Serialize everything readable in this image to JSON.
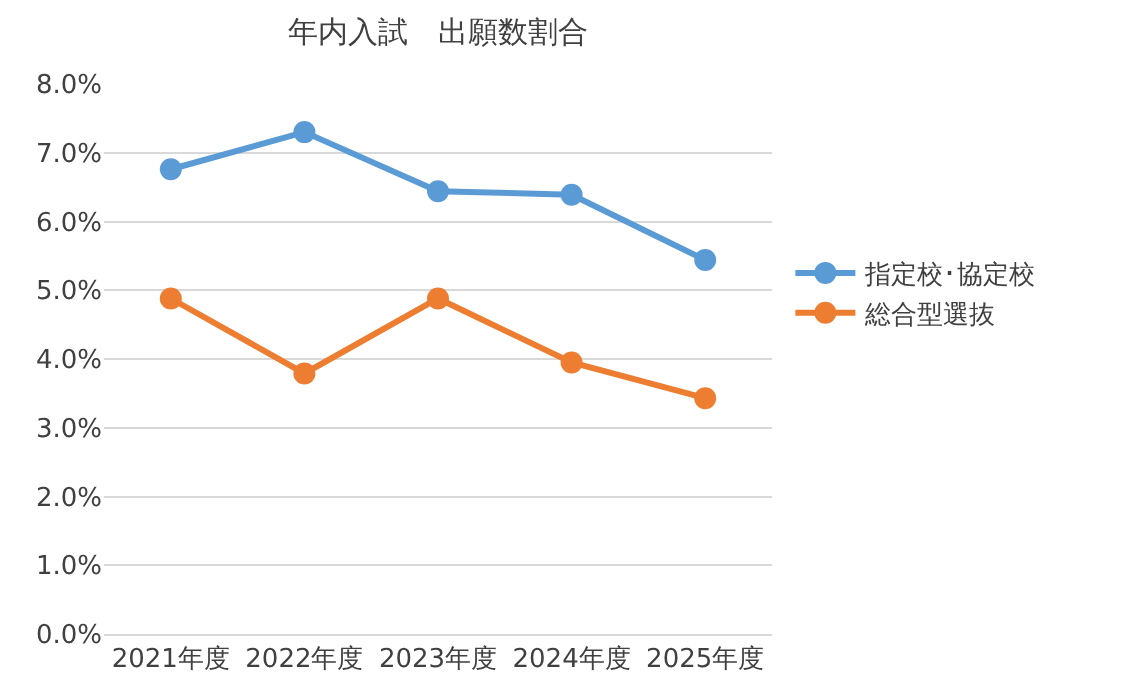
{
  "chart_data": {
    "type": "line",
    "title": "年内入試　出願数割合",
    "categories": [
      "2021年度",
      "2022年度",
      "2023年度",
      "2024年度",
      "2025年度"
    ],
    "series": [
      {
        "name": "指定校･協定校",
        "color": "#5b9bd5",
        "values": [
          6.76,
          7.3,
          6.44,
          6.39,
          5.44
        ]
      },
      {
        "name": "総合型選抜",
        "color": "#ed7d31",
        "values": [
          4.88,
          3.79,
          4.88,
          3.95,
          3.43
        ]
      }
    ],
    "ylim": [
      0,
      8
    ],
    "yticks": [
      {
        "value": 0,
        "label": "0.0%"
      },
      {
        "value": 1,
        "label": "1.0%"
      },
      {
        "value": 2,
        "label": "2.0%"
      },
      {
        "value": 3,
        "label": "3.0%"
      },
      {
        "value": 4,
        "label": "4.0%"
      },
      {
        "value": 5,
        "label": "5.0%"
      },
      {
        "value": 6,
        "label": "6.0%"
      },
      {
        "value": 7,
        "label": "7.0%"
      },
      {
        "value": 8,
        "label": "8.0%"
      }
    ],
    "grid": "y",
    "legend": "right",
    "marker": "circle",
    "line_style": "solid"
  }
}
